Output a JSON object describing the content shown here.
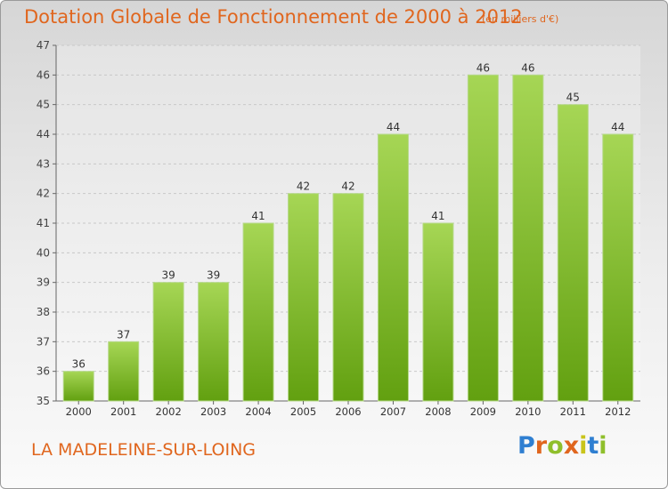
{
  "header": {
    "title": "Dotation Globale de Fonctionnement de 2000 à 2012",
    "unit_note": "(en milliers d'€)"
  },
  "footer": {
    "place": "LA MADELEINE-SUR-LOING",
    "brand": "Proxiti",
    "brand_colors": [
      "#2f7fd1",
      "#e0661e",
      "#8fbf2b",
      "#e0661e",
      "#c9c41b",
      "#2f7fd1",
      "#8fbf2b"
    ]
  },
  "colors": {
    "text_accent": "#e0661e",
    "bar_light": "#a6d655",
    "bar_dark": "#62a010",
    "grid": "#c8c8c8"
  },
  "chart_data": {
    "type": "bar",
    "title": "Dotation Globale de Fonctionnement de 2000 à 2012",
    "subtitle": "(en milliers d'€)",
    "categories": [
      "2000",
      "2001",
      "2002",
      "2003",
      "2004",
      "2005",
      "2006",
      "2007",
      "2008",
      "2009",
      "2010",
      "2011",
      "2012"
    ],
    "values": [
      36,
      37,
      39,
      39,
      41,
      42,
      42,
      44,
      41,
      46,
      46,
      45,
      44
    ],
    "yticks": [
      35,
      36,
      37,
      38,
      39,
      40,
      41,
      42,
      43,
      44,
      45,
      46,
      47
    ],
    "ylim": [
      35,
      47
    ],
    "grid": true,
    "xlabel": "",
    "ylabel": ""
  }
}
